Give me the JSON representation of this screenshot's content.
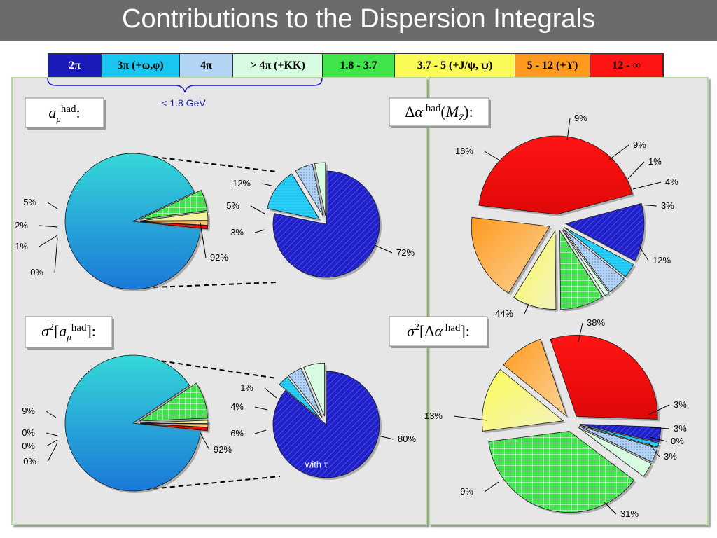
{
  "title": "Contributions to the Dispersion Integrals",
  "legend": [
    {
      "label": "2π",
      "color": "#1a1ab8",
      "text_color": "#ffffff"
    },
    {
      "label": "3π (+ω,φ)",
      "color": "#18c6f0",
      "text_color": "#000000"
    },
    {
      "label": "4π",
      "color": "#b3d4f5",
      "text_color": "#000000"
    },
    {
      "label": "> 4π (+KK)",
      "color": "#d7fbe0",
      "text_color": "#000000"
    },
    {
      "label": "1.8 - 3.7",
      "color": "#3fe54b",
      "text_color": "#000000"
    },
    {
      "label": "3.7 - 5 (+J/ψ, ψ)",
      "color": "#fbfb57",
      "text_color": "#000000"
    },
    {
      "label": "5 - 12 (+ϒ)",
      "color": "#ff9a1e",
      "text_color": "#000000"
    },
    {
      "label": "12 - ∞",
      "color": "#ff1414",
      "text_color": "#000000"
    }
  ],
  "brace_label": "< 1.8 GeV",
  "panel_titles": {
    "a_mu": "aμhad:",
    "delta_alpha": "Δα had(MZ):",
    "sigma_a_mu": "σ2[aμhad]:",
    "sigma_delta_alpha": "σ2[Δα had]:"
  },
  "with_tau_label": "with τ",
  "chart_data": [
    {
      "type": "pie",
      "title": "aμhad",
      "categories": [
        "< 1.8 GeV",
        "1.8 - 3.7",
        "3.7 - 5 (+J/ψ, ψ)",
        "5 - 12 (+ϒ)",
        "12 - ∞"
      ],
      "values": [
        92,
        5,
        2,
        1,
        0
      ],
      "labels": [
        "92%",
        "5%",
        "2%",
        "1%",
        "0%"
      ]
    },
    {
      "type": "pie",
      "title": "aμhad < 1.8 GeV",
      "categories": [
        "2π",
        "3π (+ω,φ)",
        "4π",
        "> 4π (+KK)"
      ],
      "values": [
        72,
        12,
        5,
        3
      ],
      "labels": [
        "72%",
        "12%",
        "5%",
        "3%"
      ]
    },
    {
      "type": "pie",
      "title": "Δα had(MZ)",
      "categories": [
        "2π",
        "3π (+ω,φ)",
        "4π",
        "> 4π (+KK)",
        "1.8 - 3.7",
        "3.7 - 5 (+J/ψ, ψ)",
        "5 - 12 (+ϒ)",
        "12 - ∞"
      ],
      "values": [
        12,
        3,
        4,
        1,
        9,
        9,
        18,
        44
      ],
      "labels": [
        "12%",
        "3%",
        "4%",
        "1%",
        "9%",
        "9%",
        "18%",
        "44%"
      ]
    },
    {
      "type": "pie",
      "title": "σ2[aμhad]",
      "categories": [
        "< 1.8 GeV",
        "1.8 - 3.7",
        "3.7 - 5 (+J/ψ, ψ)",
        "5 - 12 (+ϒ)",
        "12 - ∞"
      ],
      "values": [
        92,
        9,
        0,
        0,
        0
      ],
      "labels": [
        "92%",
        "9%",
        "0%",
        "0%",
        "0%"
      ]
    },
    {
      "type": "pie",
      "title": "σ2[aμhad] < 1.8 GeV",
      "categories": [
        "2π",
        "3π (+ω,φ)",
        "4π",
        "> 4π (+KK)"
      ],
      "values": [
        80,
        1,
        4,
        6
      ],
      "labels": [
        "80%",
        "1%",
        "4%",
        "6%"
      ],
      "annotation": "with τ"
    },
    {
      "type": "pie",
      "title": "σ2[Δα had]",
      "categories": [
        "2π",
        "3π (+ω,φ)",
        "4π",
        "> 4π (+KK)",
        "1.8 - 3.7",
        "3.7 - 5 (+J/ψ, ψ)",
        "5 - 12 (+ϒ)",
        "12 - ∞"
      ],
      "values": [
        3,
        0,
        3,
        3,
        38,
        13,
        9,
        31
      ],
      "labels": [
        "3%",
        "0%",
        "3%",
        "3%",
        "38%",
        "13%",
        "9%",
        "31%"
      ]
    }
  ]
}
